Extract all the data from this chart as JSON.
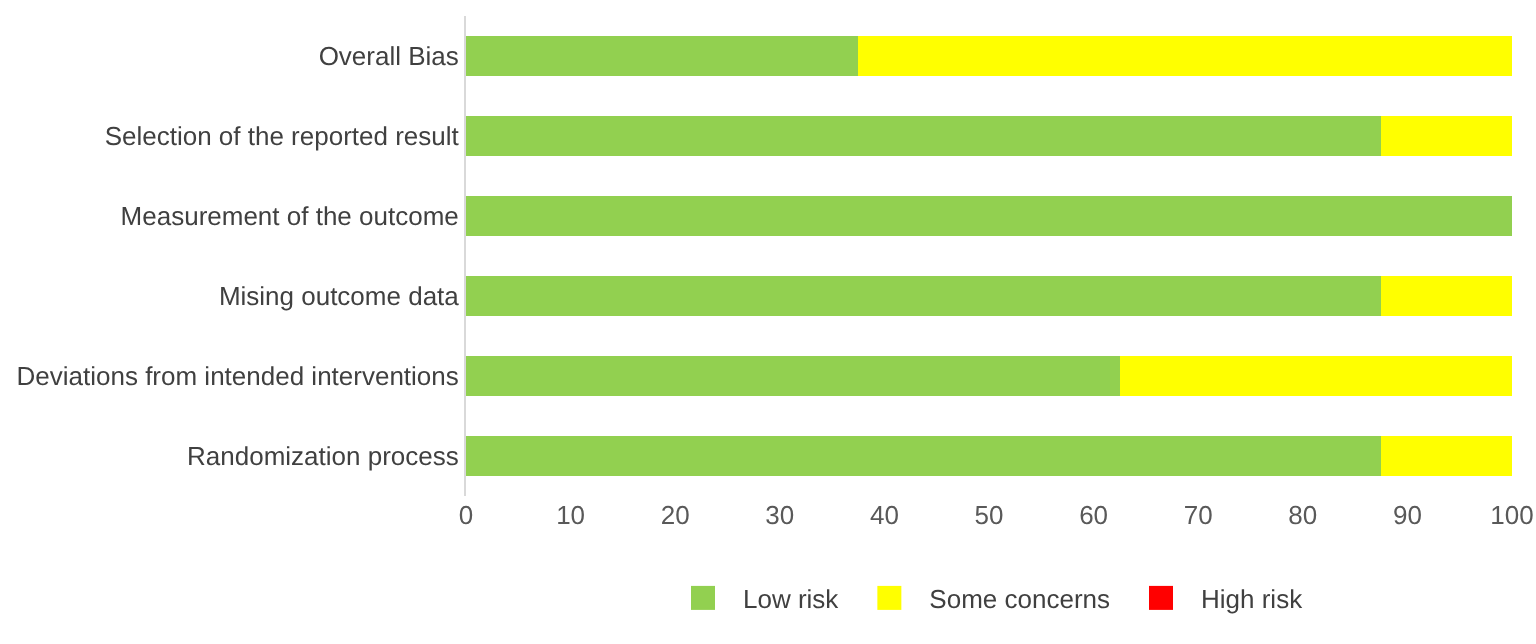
{
  "chart_data": {
    "type": "bar",
    "orientation": "horizontal",
    "stacked": true,
    "categories": [
      "Overall Bias",
      "Selection of the reported result",
      "Measurement of the outcome",
      "Mising outcome data",
      "Deviations from intended interventions",
      "Randomization process"
    ],
    "series": [
      {
        "name": "Low risk",
        "color": "#92d050",
        "values": [
          37.5,
          87.5,
          100,
          87.5,
          62.5,
          87.5
        ]
      },
      {
        "name": "Some concerns",
        "color": "#ffff00",
        "values": [
          62.5,
          12.5,
          0,
          12.5,
          37.5,
          12.5
        ]
      },
      {
        "name": "High risk",
        "color": "#ff0000",
        "values": [
          0,
          0,
          0,
          0,
          0,
          0
        ]
      }
    ],
    "xlim": [
      0,
      100
    ],
    "xticks": [
      0,
      10,
      20,
      30,
      40,
      50,
      60,
      70,
      80,
      90,
      100
    ],
    "grid": false,
    "legend": "bottom"
  }
}
